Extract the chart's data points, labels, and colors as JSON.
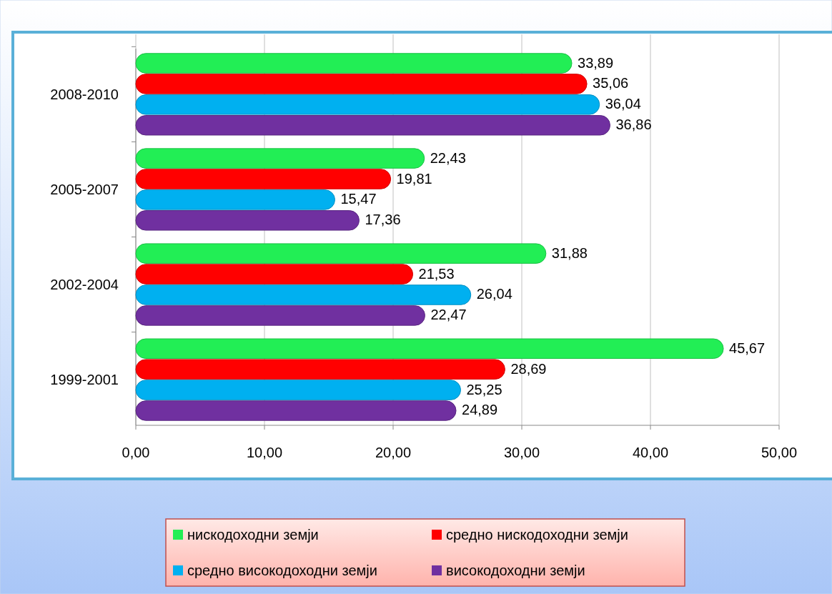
{
  "chart_data": {
    "type": "bar",
    "orientation": "horizontal",
    "categories": [
      "2008-2010",
      "2005-2007",
      "2002-2004",
      "1999-2001"
    ],
    "series": [
      {
        "name": "нискодоходни земји",
        "color": "#22ee55",
        "values": [
          33.89,
          22.43,
          31.88,
          45.67
        ],
        "value_labels": [
          "33,89",
          "22,43",
          "31,88",
          "45,67"
        ]
      },
      {
        "name": "средно нискодоходни земји",
        "color": "#ff0000",
        "values": [
          35.06,
          19.81,
          21.53,
          28.69
        ],
        "value_labels": [
          "35,06",
          "19,81",
          "21,53",
          "28,69"
        ]
      },
      {
        "name": "средно високодоходни земји",
        "color": "#00b0f0",
        "values": [
          36.04,
          15.47,
          26.04,
          25.25
        ],
        "value_labels": [
          "36,04",
          "15,47",
          "26,04",
          "25,25"
        ]
      },
      {
        "name": "високодоходни земји",
        "color": "#7030a0",
        "values": [
          36.86,
          17.36,
          22.47,
          24.89
        ],
        "value_labels": [
          "36,86",
          "17,36",
          "22,47",
          "24,89"
        ]
      }
    ],
    "xlim": [
      0,
      50
    ],
    "xticks": [
      {
        "value": 0,
        "label": "0,00"
      },
      {
        "value": 10,
        "label": "10,00"
      },
      {
        "value": 20,
        "label": "20,00"
      },
      {
        "value": 30,
        "label": "30,00"
      },
      {
        "value": 40,
        "label": "40,00"
      },
      {
        "value": 50,
        "label": "50,00"
      }
    ],
    "grid": "x",
    "legend": "bottom"
  }
}
